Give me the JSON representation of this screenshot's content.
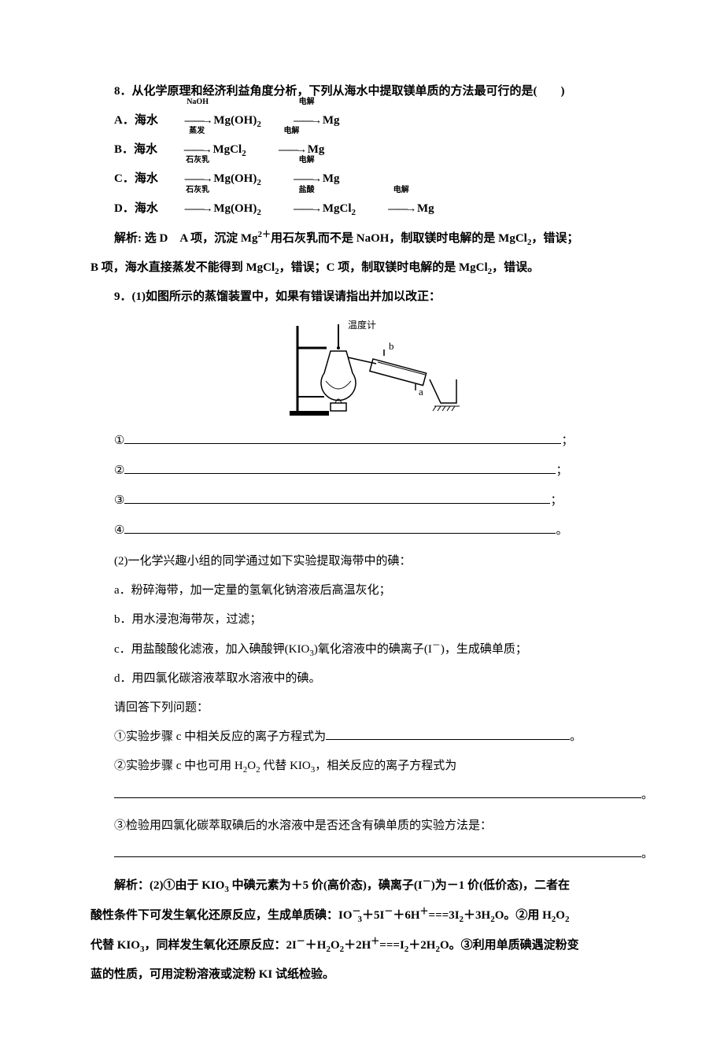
{
  "q8": {
    "stem": "8．从化学原理和经济利益角度分析，下列从海水中提取镁单质的方法最可行的是(　　)",
    "optA_pre": "A．海水 ",
    "optB_pre": "B．海水 ",
    "optC_pre": "C．海水 ",
    "optD_pre": "D．海水 ",
    "naoh": "NaOH",
    "zhengfa": "蒸发",
    "shihuiru": "石灰乳",
    "yansuan": "盐酸",
    "dianjie": "电解",
    "mgoh2_a": "Mg(OH)",
    "mgoh2_b": "Mg(OH)",
    "mgoh2_c": "Mg(OH)",
    "mgoh2_d": "Mg(OH)",
    "sub2": "2",
    "mgcl2_a": "MgCl",
    "mgcl2_b": "MgCl",
    "mgcl2_c": "MgCl",
    "mg_a": "Mg",
    "mg_b": "Mg",
    "mg_c": "Mg",
    "mg_d": "Mg",
    "dash_arrow": "――→",
    "explain_p1a": "解析: 选 D　A 项，沉淀 Mg",
    "explain_sup2p": "2＋",
    "explain_p1b": "用石灰乳而不是 NaOH，制取镁时电解的是 MgCl",
    "explain_p1c": "，错误；",
    "explain_p2a": "B 项，海水直接蒸发不能得到 MgCl",
    "explain_p2b": "，错误；C 项，制取镁时电解的是 MgCl",
    "explain_p2c": "，错误。"
  },
  "q9": {
    "p1": "9．(1)如图所示的蒸馏装置中，如果有错误请指出并加以改正：",
    "fig_wdj": "温度计",
    "fig_b": "b",
    "fig_a": "a",
    "b1": "①",
    "b2": "②",
    "b3": "③",
    "b4": "④",
    "semicolon": "；",
    "period": "。",
    "p2": "(2)一化学兴趣小组的同学通过如下实验提取海带中的碘：",
    "pa": "a．粉碎海带，加一定量的氢氧化钠溶液后高温灰化；",
    "pb": "b．用水浸泡海带灰，过滤；",
    "pc_a": "c．用盐酸酸化滤液，加入碘酸钾(KIO",
    "pc_sub3": "3",
    "pc_b": ")氧化溶液中的碘离子(I",
    "pc_supm": "－",
    "pc_c": ")，生成碘单质；",
    "pd": "d．用四氯化碳溶液萃取水溶液中的碘。",
    "pask": "请回答下列问题：",
    "pq1": "①实验步骤 c 中相关反应的离子方程式为",
    "pq2_a": "②实验步骤 c 中也可用 H",
    "pq2_b": "O",
    "pq2_c": " 代替 KIO",
    "pq2_d": "，相关反应的离子方程式为",
    "pq3": "③检验用四氯化碳萃取碘后的水溶液中是否还含有碘单质的实验方法是：",
    "expl_a": "解析：(2)①由于 KIO",
    "expl_sub3a": "3",
    "expl_b": " 中碘元素为＋5 价(高价态)，碘离子(I",
    "expl_supm": "－",
    "expl_c": ")为－1 价(低价态)，二者在",
    "expl_p2a": "酸性条件下可发生氧化还原反应，生成单质碘：IO",
    "expl_io_supm": "－",
    "expl_io_sub3": "3",
    "expl_p2b": "＋5I",
    "expl_p2c": "＋6H",
    "expl_supp": "＋",
    "expl_eq": "===",
    "expl_p2d": "3I",
    "expl_isub2": "2",
    "expl_p2e": "＋3H",
    "expl_h2o_a": "2",
    "expl_h2o_b": "O。②用 H",
    "expl_p3a": "代替 KIO",
    "expl_p3b": "，同样发生氧化还原反应：2I",
    "expl_p3c": "＋H",
    "expl_p3d": "O",
    "expl_p3e": "＋2H",
    "expl_p3f": "I",
    "expl_p3g": "＋2H",
    "expl_p3h": "O。③利用单质碘遇淀粉变",
    "expl_p4": "蓝的性质，可用淀粉溶液或淀粉 KI 试纸检验。"
  },
  "styles": {
    "fill_w_long": "555px",
    "fill_w_long2": "548px",
    "fill_w_long3": "541px",
    "fill_w_long4": "548px",
    "fill_w_med": "310px",
    "fill_w_xlong": "670px"
  }
}
